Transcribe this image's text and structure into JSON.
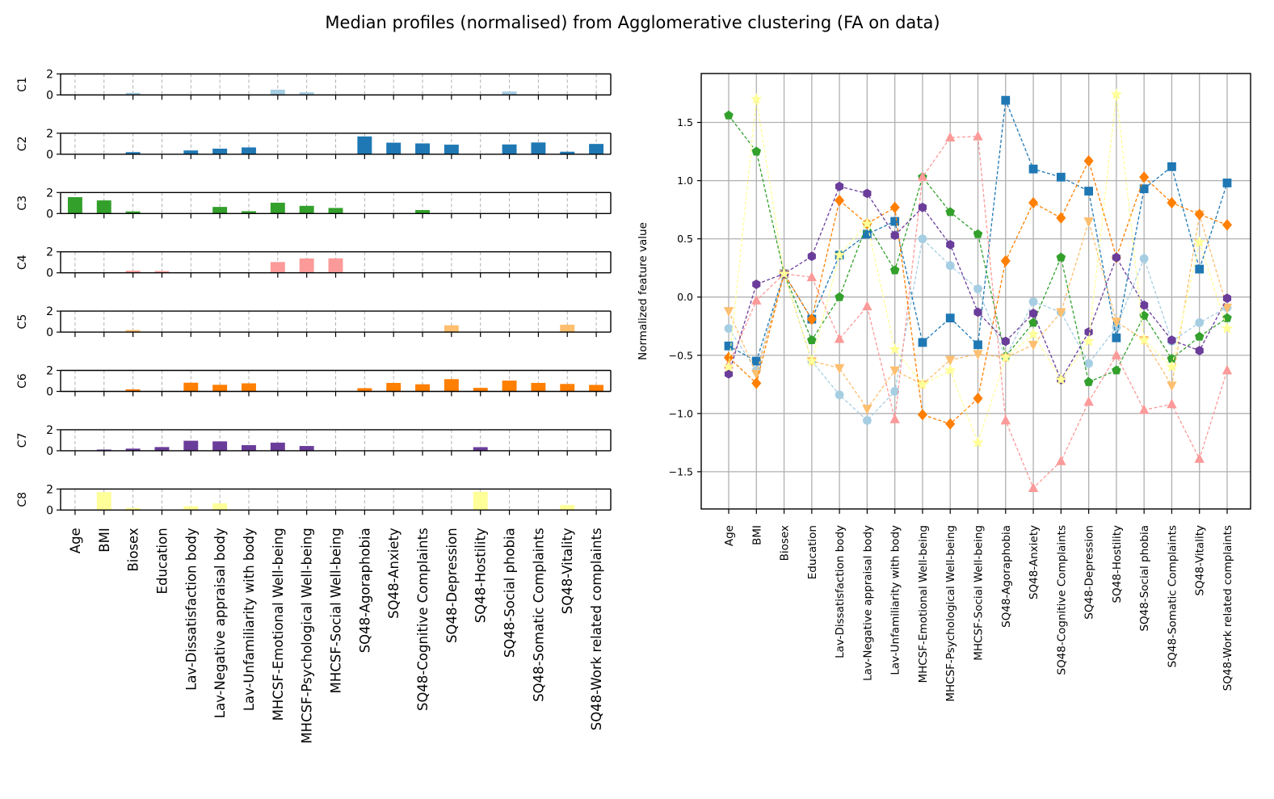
{
  "title": "Median profiles (normalised) from Agglomerative clustering (FA on data)",
  "chart_data": [
    {
      "type": "bar",
      "layout": "small-multiples",
      "panels": [
        "C1",
        "C2",
        "C3",
        "C4",
        "C5",
        "C6",
        "C7",
        "C8"
      ],
      "ylim": [
        0,
        2
      ],
      "yticks": [
        0,
        2
      ],
      "grid": "vertical dashed",
      "categories": [
        "Age",
        "BMI",
        "Biosex",
        "Education",
        "Lav-Dissatisfaction body",
        "Lav-Negative appraisal body",
        "Lav-Unfamiliarity with body",
        "MHCSF-Emotional Well-being",
        "MHCSF-Psychological Well-being",
        "MHCSF-Social Well-being",
        "SQ48-Agoraphobia",
        "SQ48-Anxiety",
        "SQ48-Cognitive Complaints",
        "SQ48-Depression",
        "SQ48-Hostility",
        "SQ48-Social phobia",
        "SQ48-Somatic Complaints",
        "SQ48-Vitality",
        "SQ48-Work related complaints"
      ],
      "series": [
        {
          "name": "C1",
          "color": "#a6cee3",
          "values": [
            0,
            0,
            0.2,
            0,
            0,
            0,
            0,
            0.5,
            0.25,
            0,
            0,
            0,
            0,
            0,
            0,
            0.33,
            0,
            0,
            0
          ]
        },
        {
          "name": "C2",
          "color": "#1f78b4",
          "values": [
            0,
            0,
            0.2,
            0,
            0.36,
            0.53,
            0.65,
            0,
            0,
            0,
            1.69,
            1.1,
            1.03,
            0.91,
            0,
            0.93,
            1.12,
            0.24,
            0.98
          ]
        },
        {
          "name": "C3",
          "color": "#33a02c",
          "values": [
            1.56,
            1.25,
            0.2,
            0,
            0,
            0.63,
            0.22,
            1.03,
            0.73,
            0.53,
            0,
            0,
            0.33,
            0,
            0,
            0,
            0,
            0,
            0
          ]
        },
        {
          "name": "C4",
          "color": "#fb9a99",
          "values": [
            0,
            0,
            0.2,
            0.17,
            0,
            0,
            0,
            1.03,
            1.37,
            1.38,
            0,
            0,
            0,
            0,
            0,
            0,
            0,
            0,
            0
          ]
        },
        {
          "name": "C5",
          "color": "#fdbf6f",
          "values": [
            0,
            0,
            0.2,
            0,
            0,
            0,
            0,
            0,
            0,
            0,
            0,
            0,
            0,
            0.65,
            0,
            0,
            0,
            0.71,
            0
          ]
        },
        {
          "name": "C6",
          "color": "#ff7f00",
          "values": [
            0,
            0,
            0.2,
            0,
            0.83,
            0.63,
            0.77,
            0,
            0,
            0,
            0.31,
            0.81,
            0.68,
            1.17,
            0.34,
            1.03,
            0.81,
            0.71,
            0.62
          ]
        },
        {
          "name": "C7",
          "color": "#6a3d9a",
          "values": [
            0,
            0.11,
            0.2,
            0.35,
            0.95,
            0.89,
            0.53,
            0.77,
            0.45,
            0,
            0,
            0,
            0,
            0,
            0.34,
            0,
            0,
            0,
            0
          ]
        },
        {
          "name": "C8",
          "color": "#ffff99",
          "values": [
            0,
            1.7,
            0.2,
            0,
            0.36,
            0.63,
            0,
            0,
            0,
            0,
            0,
            0,
            0,
            0,
            1.74,
            0,
            0,
            0.47,
            0
          ]
        }
      ]
    },
    {
      "type": "line",
      "ylabel": "Normalized feature value",
      "ylim": [
        -1.82,
        1.92
      ],
      "yticks": [
        -1.5,
        -1.0,
        -0.5,
        0.0,
        0.5,
        1.0,
        1.5
      ],
      "ytick_labels": [
        "−1.5",
        "−1.0",
        "−0.5",
        "0.0",
        "0.5",
        "1.0",
        "1.5"
      ],
      "grid": true,
      "categories": [
        "Age",
        "BMI",
        "Biosex",
        "Education",
        "Lav-Dissatisfaction body",
        "Lav-Negative appraisal body",
        "Lav-Unfamiliarity with body",
        "MHCSF-Emotional Well-being",
        "MHCSF-Psychological Well-being",
        "MHCSF-Social Well-being",
        "SQ48-Agoraphobia",
        "SQ48-Anxiety",
        "SQ48-Cognitive Complaints",
        "SQ48-Depression",
        "SQ48-Hostility",
        "SQ48-Social phobia",
        "SQ48-Somatic Complaints",
        "SQ48-Vitality",
        "SQ48-Work related complaints"
      ],
      "series": [
        {
          "color": "#a6cee3",
          "marker": "circle",
          "values": [
            -0.27,
            -0.63,
            0.2,
            -0.55,
            -0.84,
            -1.06,
            -0.81,
            0.5,
            0.27,
            0.07,
            -0.52,
            -0.04,
            -0.13,
            -0.57,
            -0.26,
            0.33,
            -0.38,
            -0.22,
            -0.09
          ]
        },
        {
          "color": "#1f78b4",
          "marker": "square",
          "values": [
            -0.42,
            -0.55,
            0.2,
            -0.19,
            0.36,
            0.54,
            0.65,
            -0.39,
            -0.18,
            -0.41,
            1.69,
            1.1,
            1.03,
            0.91,
            -0.35,
            0.93,
            1.12,
            0.24,
            0.98
          ]
        },
        {
          "color": "#33a02c",
          "marker": "pentagon",
          "values": [
            1.56,
            1.25,
            0.2,
            -0.37,
            -0.0,
            0.63,
            0.23,
            1.03,
            0.73,
            0.54,
            -0.51,
            -0.22,
            0.34,
            -0.73,
            -0.63,
            -0.16,
            -0.53,
            -0.34,
            -0.18
          ]
        },
        {
          "color": "#fb9a99",
          "marker": "triangle",
          "values": [
            -0.58,
            -0.03,
            0.2,
            0.17,
            -0.36,
            -0.08,
            -1.05,
            1.03,
            1.37,
            1.38,
            -1.06,
            -1.64,
            -1.41,
            -0.9,
            -0.5,
            -0.97,
            -0.92,
            -1.39,
            -0.63
          ]
        },
        {
          "color": "#fdbf6f",
          "marker": "triangle-down",
          "values": [
            -0.12,
            -0.66,
            0.2,
            -0.55,
            -0.61,
            -0.96,
            -0.63,
            -0.75,
            -0.54,
            -0.49,
            -0.52,
            -0.41,
            -0.13,
            0.65,
            -0.21,
            -0.37,
            -0.76,
            0.71,
            -0.09
          ]
        },
        {
          "color": "#ff7f00",
          "marker": "diamond",
          "values": [
            -0.52,
            -0.74,
            0.2,
            -0.19,
            0.83,
            0.63,
            0.77,
            -1.01,
            -1.09,
            -0.87,
            0.31,
            0.81,
            0.68,
            1.17,
            0.34,
            1.03,
            0.81,
            0.71,
            0.62
          ]
        },
        {
          "color": "#6a3d9a",
          "marker": "hexagon",
          "values": [
            -0.66,
            0.11,
            0.2,
            0.35,
            0.95,
            0.89,
            0.53,
            0.77,
            0.45,
            -0.13,
            -0.38,
            -0.14,
            -0.71,
            -0.3,
            0.34,
            -0.07,
            -0.37,
            -0.46,
            -0.01
          ]
        },
        {
          "color": "#ffff99",
          "marker": "star",
          "values": [
            -0.6,
            1.7,
            0.2,
            -0.55,
            0.36,
            0.63,
            -0.45,
            -0.75,
            -0.63,
            -1.25,
            -0.52,
            -0.32,
            -0.71,
            -0.38,
            1.74,
            -0.37,
            -0.6,
            0.47,
            -0.27
          ]
        }
      ]
    }
  ]
}
